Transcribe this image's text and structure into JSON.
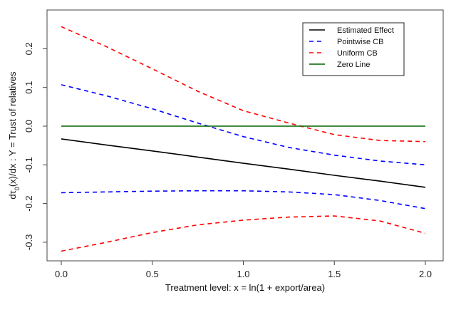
{
  "chart_data": {
    "type": "line",
    "title": "",
    "xlabel": "Treatment level:  x = ln(1 + export/area)",
    "ylabel": "dτ0(x)/dx :   Y = Trust of relatives",
    "ylabel_parts": {
      "d": "dτ",
      "sub": "0",
      "rest": "(x)/dx :   Y = Trust of relatives"
    },
    "xlim": [
      0,
      2
    ],
    "ylim": [
      -0.3,
      0.25
    ],
    "xticks": [
      "0.0",
      "0.5",
      "1.0",
      "1.5",
      "2.0"
    ],
    "xtick_values": [
      0,
      0.5,
      1.0,
      1.5,
      2.0
    ],
    "yticks": [
      "-0.3",
      "-0.2",
      "-0.1",
      "0.0",
      "0.1",
      "0.2"
    ],
    "ytick_values": [
      -0.3,
      -0.2,
      -0.1,
      0.0,
      0.1,
      0.2
    ],
    "grid": false,
    "legend_position": "top-right",
    "x": [
      0,
      0.25,
      0.5,
      0.75,
      1.0,
      1.25,
      1.5,
      1.75,
      2.0
    ],
    "series": [
      {
        "name": "Estimated Effect",
        "color": "#000000",
        "dash": "solid",
        "values": [
          -0.033,
          -0.049,
          -0.064,
          -0.08,
          -0.096,
          -0.111,
          -0.127,
          -0.142,
          -0.158
        ]
      },
      {
        "name": "Pointwise CB",
        "color": "#0000ff",
        "dash": "dashed",
        "values": [
          0.107,
          0.078,
          0.045,
          0.008,
          -0.027,
          -0.055,
          -0.075,
          -0.09,
          -0.1
        ]
      },
      {
        "name": "Pointwise CB",
        "color": "#0000ff",
        "dash": "dashed",
        "legend": false,
        "values": [
          -0.172,
          -0.17,
          -0.168,
          -0.167,
          -0.167,
          -0.17,
          -0.177,
          -0.192,
          -0.213
        ]
      },
      {
        "name": "Uniform CB",
        "color": "#ff0000",
        "dash": "dashed",
        "values": [
          0.257,
          0.205,
          0.148,
          0.09,
          0.04,
          0.008,
          -0.022,
          -0.037,
          -0.04
        ]
      },
      {
        "name": "Uniform CB",
        "color": "#ff0000",
        "dash": "dashed",
        "legend": false,
        "values": [
          -0.323,
          -0.3,
          -0.275,
          -0.255,
          -0.243,
          -0.235,
          -0.232,
          -0.245,
          -0.277
        ]
      },
      {
        "name": "Zero Line",
        "color": "#006400",
        "dash": "solid",
        "values": [
          0,
          0,
          0,
          0,
          0,
          0,
          0,
          0,
          0
        ]
      }
    ],
    "legend": [
      {
        "label": "Estimated Effect",
        "color": "#000000",
        "dash": "solid"
      },
      {
        "label": "Pointwise CB",
        "color": "#0000ff",
        "dash": "dashed"
      },
      {
        "label": "Uniform CB",
        "color": "#ff0000",
        "dash": "dashed"
      },
      {
        "label": "Zero Line",
        "color": "#006400",
        "dash": "solid"
      }
    ]
  }
}
